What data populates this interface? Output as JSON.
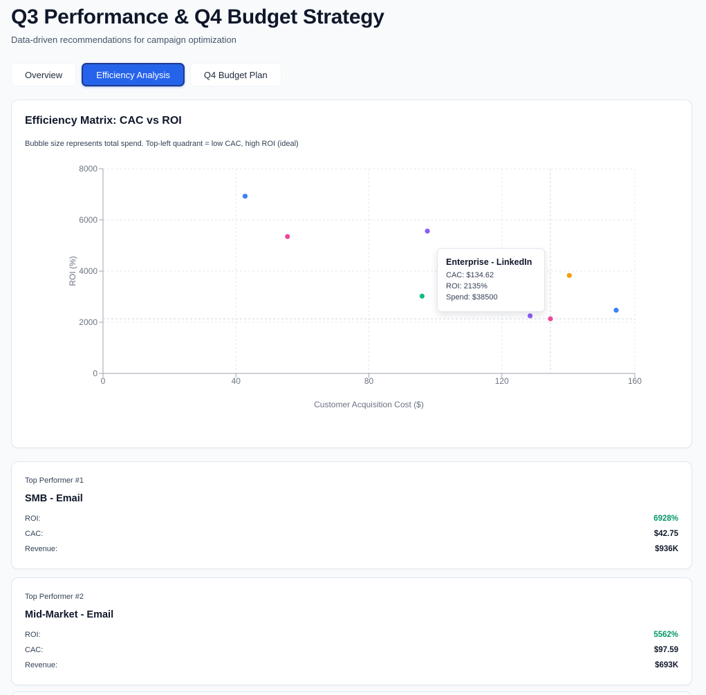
{
  "header": {
    "title": "Q3 Performance & Q4 Budget Strategy",
    "subtitle": "Data-driven recommendations for campaign optimization"
  },
  "tabs": [
    {
      "label": "Overview",
      "active": false
    },
    {
      "label": "Efficiency Analysis",
      "active": true
    },
    {
      "label": "Q4 Budget Plan",
      "active": false
    }
  ],
  "chart_card": {
    "title": "Efficiency Matrix: CAC vs ROI",
    "description": "Bubble size represents total spend. Top-left quadrant = low CAC, high ROI (ideal)"
  },
  "chart_data": {
    "type": "scatter",
    "title": "Efficiency Matrix: CAC vs ROI",
    "xlabel": "Customer Acquisition Cost ($)",
    "ylabel": "ROI (%)",
    "xlim": [
      0,
      160
    ],
    "ylim": [
      0,
      8000
    ],
    "xticks": [
      0,
      40,
      80,
      120,
      160
    ],
    "yticks": [
      0,
      2000,
      4000,
      6000,
      8000
    ],
    "grid": true,
    "crosshair": {
      "x": 134.62,
      "y": 2135
    },
    "points": [
      {
        "x": 42.75,
        "y": 6928,
        "color": "#3b82f6"
      },
      {
        "x": 55.5,
        "y": 5350,
        "color": "#ec4899"
      },
      {
        "x": 97.59,
        "y": 5562,
        "color": "#8b5cf6"
      },
      {
        "x": 96.0,
        "y": 3020,
        "color": "#10b981"
      },
      {
        "x": 128.5,
        "y": 2250,
        "color": "#8b5cf6"
      },
      {
        "x": 134.62,
        "y": 2135,
        "color": "#ec4899"
      },
      {
        "x": 140.3,
        "y": 3830,
        "color": "#f59e0b"
      },
      {
        "x": 154.4,
        "y": 2470,
        "color": "#3b82f6"
      }
    ]
  },
  "tooltip": {
    "title": "Enterprise - LinkedIn",
    "cac": "CAC: $134.62",
    "roi": "ROI: 2135%",
    "spend": "Spend: $38500"
  },
  "performers": [
    {
      "label": "Top Performer #1",
      "name": "SMB - Email",
      "roi_label": "ROI:",
      "roi": "6928%",
      "cac_label": "CAC:",
      "cac": "$42.75",
      "revenue_label": "Revenue:",
      "revenue": "$936K"
    },
    {
      "label": "Top Performer #2",
      "name": "Mid-Market - Email",
      "roi_label": "ROI:",
      "roi": "5562%",
      "cac_label": "CAC:",
      "cac": "$97.59",
      "revenue_label": "Revenue:",
      "revenue": "$693K"
    }
  ],
  "colors": {
    "accent": "#2563eb",
    "good": "#059669"
  }
}
